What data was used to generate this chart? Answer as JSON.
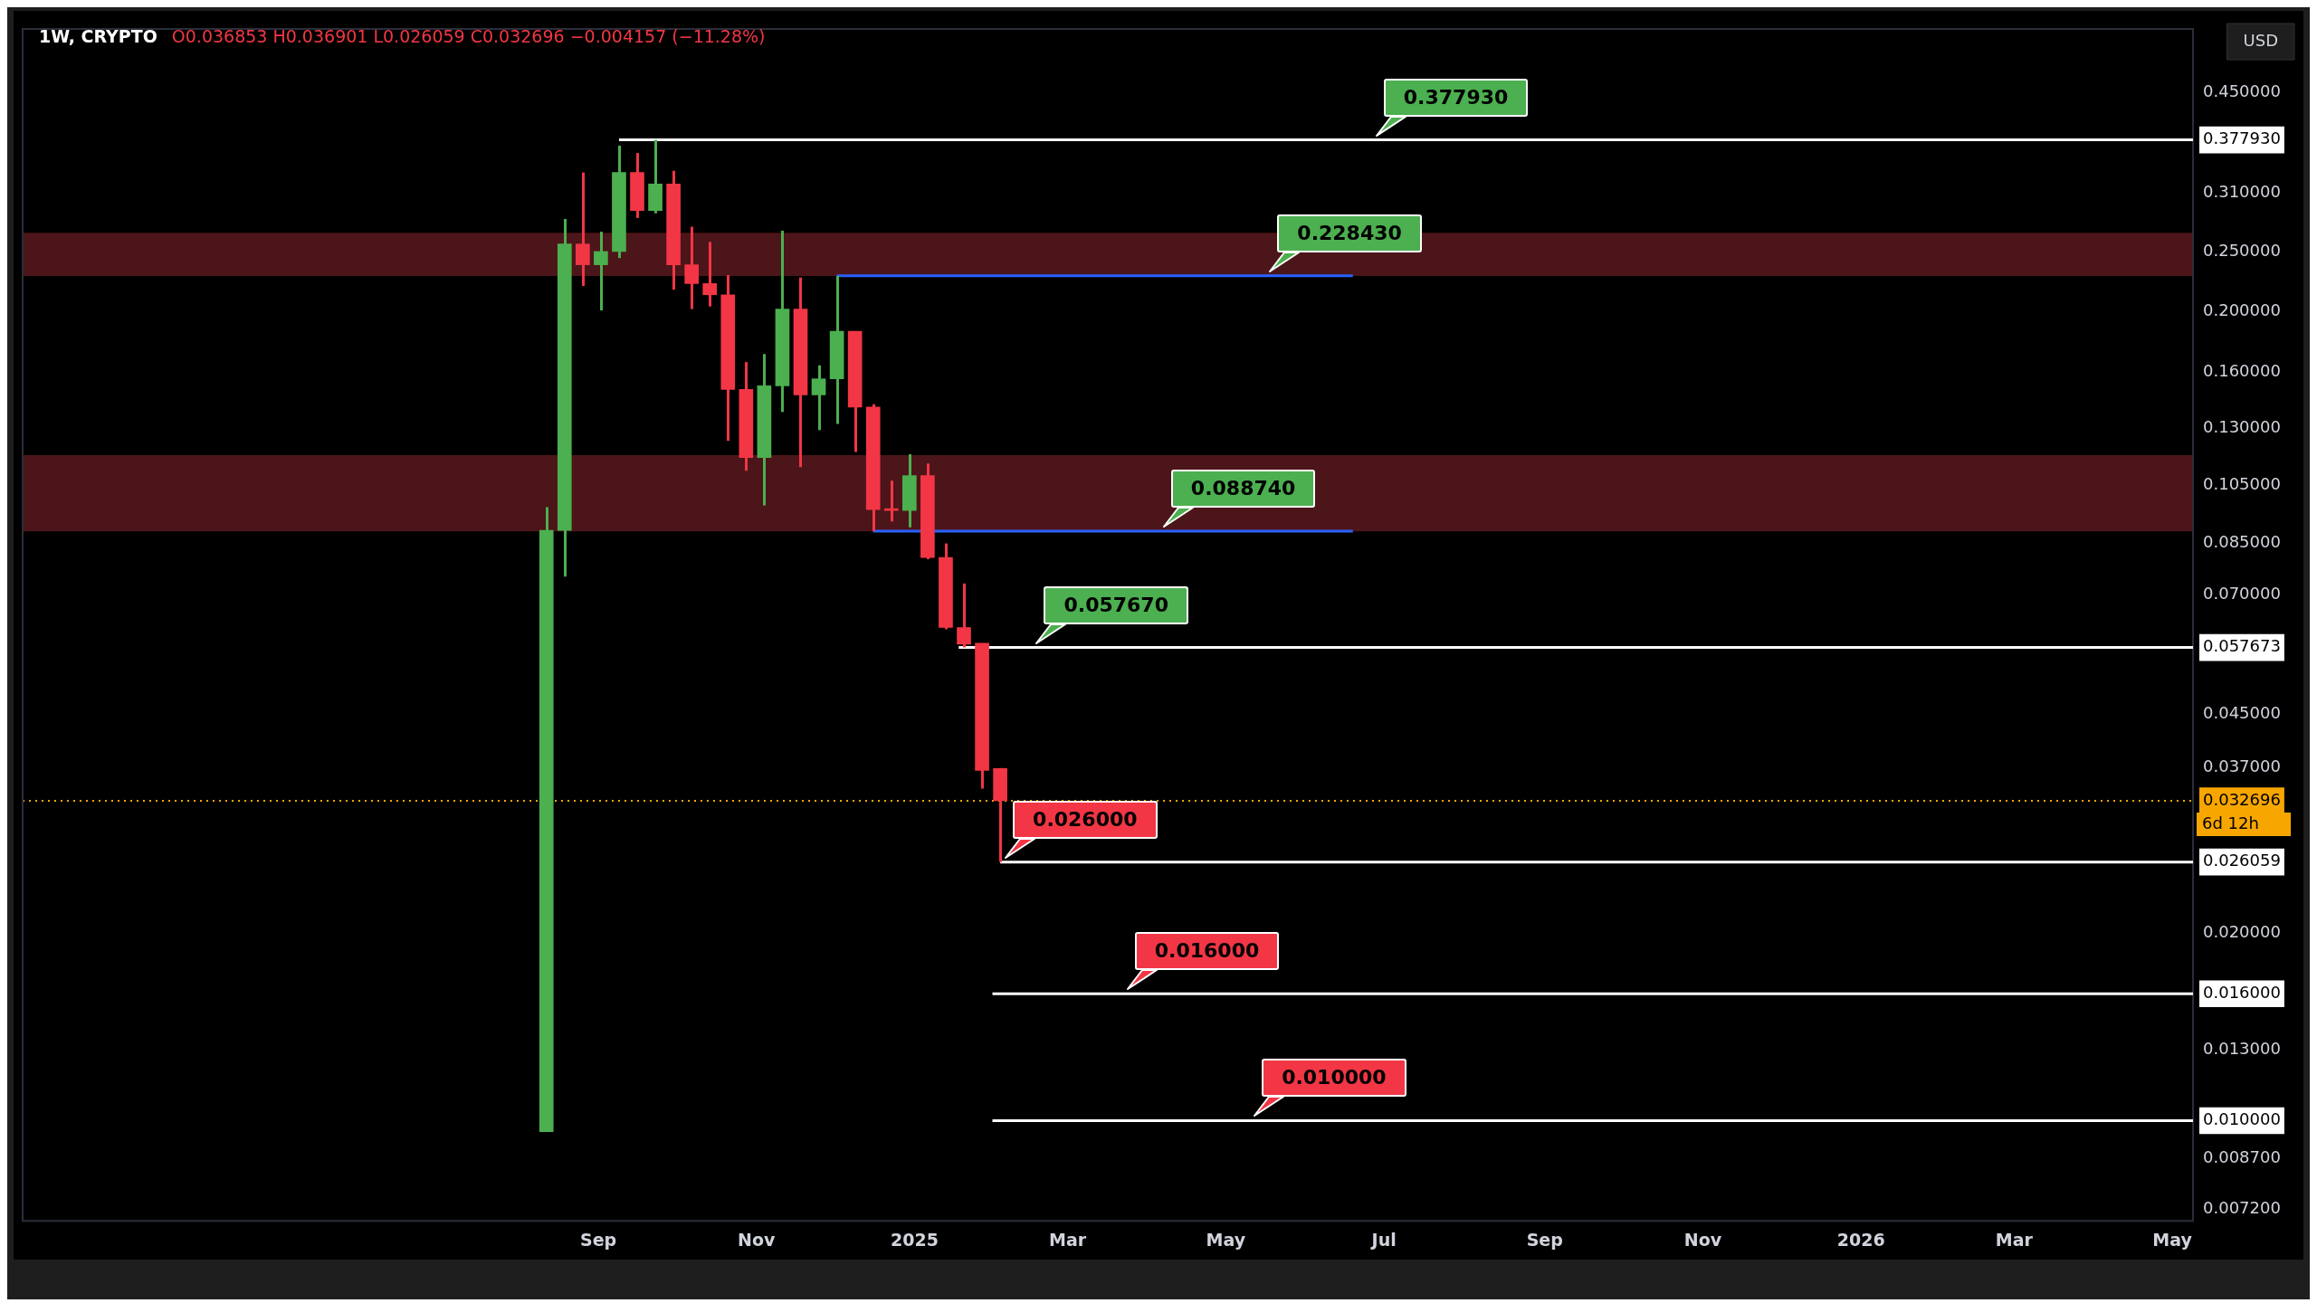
{
  "chart_data": {
    "type": "candlestick",
    "title": "1W, CRYPTO",
    "subtitle": "O0.036853 H0.036901 L0.026059 C0.032696 −0.004157 (−11.28%)",
    "x": [
      "2024-08-12",
      "2024-08-19",
      "2024-08-26",
      "2024-09-02",
      "2024-09-09",
      "2024-09-16",
      "2024-09-23",
      "2024-09-30",
      "2024-10-07",
      "2024-10-14",
      "2024-10-21",
      "2024-10-28",
      "2024-11-04",
      "2024-11-11",
      "2024-11-18",
      "2024-11-25",
      "2024-12-02",
      "2024-12-09",
      "2024-12-16",
      "2024-12-23",
      "2024-12-30",
      "2025-01-06",
      "2025-01-13",
      "2025-01-20",
      "2025-01-27",
      "2025-02-03"
    ],
    "ohlc": [
      [
        0.0096,
        0.097,
        0.0096,
        0.089
      ],
      [
        0.089,
        0.282,
        0.075,
        0.257
      ],
      [
        0.257,
        0.335,
        0.22,
        0.238
      ],
      [
        0.238,
        0.269,
        0.201,
        0.25
      ],
      [
        0.25,
        0.37,
        0.244,
        0.335
      ],
      [
        0.335,
        0.36,
        0.283,
        0.291
      ],
      [
        0.291,
        0.378,
        0.288,
        0.321
      ],
      [
        0.321,
        0.337,
        0.217,
        0.238
      ],
      [
        0.238,
        0.274,
        0.202,
        0.222
      ],
      [
        0.222,
        0.259,
        0.204,
        0.213
      ],
      [
        0.213,
        0.229,
        0.124,
        0.15
      ],
      [
        0.15,
        0.166,
        0.111,
        0.1165
      ],
      [
        0.1165,
        0.171,
        0.0976,
        0.152
      ],
      [
        0.152,
        0.27,
        0.138,
        0.202
      ],
      [
        0.202,
        0.227,
        0.1125,
        0.147
      ],
      [
        0.147,
        0.164,
        0.129,
        0.156
      ],
      [
        0.156,
        0.2284,
        0.132,
        0.186
      ],
      [
        0.186,
        0.186,
        0.119,
        0.1405
      ],
      [
        0.1405,
        0.142,
        0.0887,
        0.0961
      ],
      [
        0.0961,
        0.107,
        0.092,
        0.0958
      ],
      [
        0.0958,
        0.118,
        0.09,
        0.109
      ],
      [
        0.109,
        0.114,
        0.08,
        0.0805
      ],
      [
        0.0805,
        0.0848,
        0.0617,
        0.0621
      ],
      [
        0.0621,
        0.0731,
        0.0577,
        0.0584
      ],
      [
        0.0586,
        0.0586,
        0.0342,
        0.0366
      ],
      [
        0.036853,
        0.036901,
        0.026059,
        0.032696
      ]
    ],
    "colors": [
      "#4caf50",
      "#4caf50",
      "#f23645",
      "#4caf50",
      "#4caf50",
      "#f23645",
      "#4caf50",
      "#f23645",
      "#f23645",
      "#f23645",
      "#f23645",
      "#f23645",
      "#4caf50",
      "#4caf50",
      "#f23645",
      "#4caf50",
      "#4caf50",
      "#f23645",
      "#f23645",
      "#f23645",
      "#4caf50",
      "#f23645",
      "#f23645",
      "#f23645",
      "#f23645",
      "#f23645"
    ],
    "series": [
      {
        "type": "line",
        "x": [
          "2024-09-09",
          "2026-05-09"
        ],
        "values": [
          0.37793,
          0.37793
        ],
        "color": "#ffffff"
      },
      {
        "type": "line",
        "x": [
          "2024-12-02",
          "2025-06-19"
        ],
        "values": [
          0.22843,
          0.22843
        ],
        "color": "#2962ff"
      },
      {
        "type": "line",
        "x": [
          "2024-12-16",
          "2025-06-19"
        ],
        "values": [
          0.08874,
          0.08874
        ],
        "color": "#2962ff"
      },
      {
        "type": "line",
        "x": [
          "2025-01-18",
          "2026-05-09"
        ],
        "values": [
          0.057673,
          0.057673
        ],
        "color": "#ffffff"
      },
      {
        "type": "line",
        "x": [
          "2025-02-03",
          "2026-05-09"
        ],
        "values": [
          0.026059,
          0.026059
        ],
        "color": "#ffffff"
      },
      {
        "type": "line",
        "x": [
          "2025-01-31",
          "2026-05-09"
        ],
        "values": [
          0.016,
          0.016
        ],
        "color": "#ffffff"
      },
      {
        "type": "line",
        "x": [
          "2025-01-31",
          "2026-05-09"
        ],
        "values": [
          0.01,
          0.01
        ],
        "color": "#ffffff"
      }
    ],
    "bands": [
      {
        "axis": "y",
        "from": 0.2284,
        "to": 0.268,
        "color": "#4c1519"
      },
      {
        "axis": "y",
        "from": 0.0887,
        "to": 0.1176,
        "color": "#4c1519"
      }
    ],
    "ref_lines": [
      {
        "axis": "y",
        "value": 0.032696,
        "label": "6d 12h",
        "color": "#f7a600",
        "line_style": "dotted"
      }
    ],
    "annotations": [
      "USD",
      {
        "text": "0.377930",
        "x": "2025-06-26",
        "y": 0.37793
      },
      {
        "text": "0.228430",
        "x": "2025-05-16",
        "y": 0.22843
      },
      {
        "text": "0.088740",
        "x": "2025-04-05",
        "y": 0.08874
      },
      {
        "text": "0.057670",
        "x": "2025-02-15",
        "y": 0.057673
      },
      {
        "text": "0.026000",
        "x": "2025-02-03",
        "y": 0.026059
      },
      {
        "text": "0.016000",
        "x": "2025-03-22",
        "y": 0.016
      },
      {
        "text": "0.010000",
        "x": "2025-05-10",
        "y": 0.01
      }
    ],
    "log": "y",
    "grid": false,
    "legend": false,
    "xlim": [
      "2024-01-23",
      "2026-05-09"
    ],
    "xticks": [
      {
        "value": "2024-09-01",
        "label": "Sep"
      },
      {
        "value": "2024-11-01",
        "label": "Nov"
      },
      {
        "value": "2025-01-01",
        "label": "2025"
      },
      {
        "value": "2025-03-01",
        "label": "Mar"
      },
      {
        "value": "2025-05-01",
        "label": "May"
      },
      {
        "value": "2025-07-01",
        "label": "Jul"
      },
      {
        "value": "2025-09-01",
        "label": "Sep"
      },
      {
        "value": "2025-11-01",
        "label": "Nov"
      },
      {
        "value": "2026-01-01",
        "label": "2026"
      },
      {
        "value": "2026-03-01",
        "label": "Mar"
      },
      {
        "value": "2026-05-01",
        "label": "May"
      }
    ],
    "ylim": [
      0.0069,
      0.57
    ],
    "yticks": [
      {
        "value": 0.45,
        "label": "0.450000"
      },
      {
        "value": 0.37793,
        "label": "0.377930"
      },
      {
        "value": 0.31,
        "label": "0.310000"
      },
      {
        "value": 0.25,
        "label": "0.250000"
      },
      {
        "value": 0.2,
        "label": "0.200000"
      },
      {
        "value": 0.16,
        "label": "0.160000"
      },
      {
        "value": 0.13,
        "label": "0.130000"
      },
      {
        "value": 0.105,
        "label": "0.105000"
      },
      {
        "value": 0.085,
        "label": "0.085000"
      },
      {
        "value": 0.07,
        "label": "0.070000"
      },
      {
        "value": 0.057673,
        "label": "0.057673"
      },
      {
        "value": 0.045,
        "label": "0.045000"
      },
      {
        "value": 0.037,
        "label": "0.037000"
      },
      {
        "value": 0.032696,
        "label": "0.032696"
      },
      {
        "value": 0.026059,
        "label": "0.026059"
      },
      {
        "value": 0.02,
        "label": "0.020000"
      },
      {
        "value": 0.016,
        "label": "0.016000"
      },
      {
        "value": 0.013,
        "label": "0.013000"
      },
      {
        "value": 0.01,
        "label": "0.010000"
      },
      {
        "value": 0.0087,
        "label": "0.008700"
      },
      {
        "value": 0.0072,
        "label": "0.007200"
      }
    ]
  }
}
